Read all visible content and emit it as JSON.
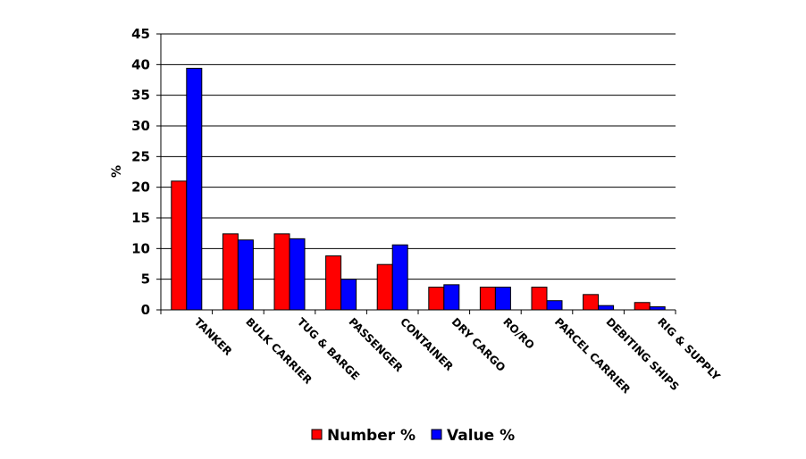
{
  "chart_data": {
    "type": "bar",
    "title": "",
    "xlabel": "",
    "ylabel": "%",
    "ylim": [
      0,
      45
    ],
    "yticks": [
      0,
      5,
      10,
      15,
      20,
      25,
      30,
      35,
      40,
      45
    ],
    "grid": true,
    "legend_position": "bottom",
    "categories": [
      "TANKER",
      "BULK CARRIER",
      "TUG & BARGE",
      "PASSENGER",
      "CONTAINER",
      "DRY CARGO",
      "RO/RO",
      "PARCEL CARRIER",
      "DEBITING SHIPS",
      "RIG & SUPPLY"
    ],
    "series": [
      {
        "name": "Number %",
        "color": "#ff0000",
        "values": [
          21.0,
          12.4,
          12.4,
          8.8,
          7.4,
          3.7,
          3.7,
          3.7,
          2.5,
          1.2
        ]
      },
      {
        "name": "Value %",
        "color": "#0000ff",
        "values": [
          39.4,
          11.4,
          11.6,
          5.0,
          10.6,
          4.1,
          3.7,
          1.5,
          0.7,
          0.5
        ]
      }
    ]
  }
}
